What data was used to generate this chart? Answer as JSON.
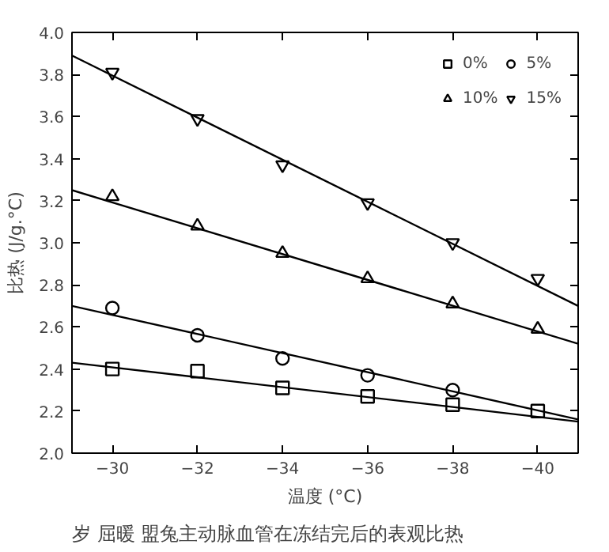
{
  "chart_data": {
    "type": "scatter",
    "xlabel": "温度 (°C)",
    "ylabel": "比热 (J/g.°C)",
    "annotations": [
      "岁 屈暖 盟兔主动脉血管在冻结完后的表观比热"
    ],
    "xlim": [
      -29.05,
      -40.95
    ],
    "ylim": [
      2.0,
      4.0
    ],
    "xticks": [
      -30,
      -32,
      -34,
      -36,
      -38,
      -40
    ],
    "yticks": [
      {
        "value": 2.0,
        "label": "2.0"
      },
      {
        "value": 2.2,
        "label": "2.2"
      },
      {
        "value": 2.4,
        "label": "2.4"
      },
      {
        "value": 2.6,
        "label": "2.6"
      },
      {
        "value": 2.8,
        "label": "2.8"
      },
      {
        "value": 3.0,
        "label": "3.0"
      },
      {
        "value": 3.2,
        "label": "3.2"
      },
      {
        "value": 3.4,
        "label": "3.4"
      },
      {
        "value": 3.6,
        "label": "3.6"
      },
      {
        "value": 3.8,
        "label": "3.8"
      },
      {
        "value": 4.0,
        "label": "4.0"
      }
    ],
    "grid": false,
    "legend": "top right",
    "series": [
      {
        "name": "0%",
        "color": "#000000",
        "marker": "square",
        "x": [
          -30,
          -32,
          -34,
          -36,
          -38,
          -40
        ],
        "values": [
          2.4,
          2.39,
          2.31,
          2.27,
          2.23,
          2.2
        ]
      },
      {
        "name": "5%",
        "color": "#000000",
        "marker": "circle",
        "x": [
          -30,
          -32,
          -34,
          -36,
          -38
        ],
        "values": [
          2.69,
          2.56,
          2.45,
          2.37,
          2.3
        ]
      },
      {
        "name": "10%",
        "color": "#000000",
        "marker": "triangle",
        "x": [
          -30,
          -32,
          -34,
          -36,
          -38,
          -40
        ],
        "values": [
          3.22,
          3.08,
          2.95,
          2.83,
          2.71,
          2.59
        ]
      },
      {
        "name": "15%",
        "color": "#000000",
        "x": [
          -30,
          -32,
          -34,
          -36,
          -38,
          -40
        ],
        "values": [
          3.81,
          3.59,
          3.37,
          3.19,
          3.0,
          2.83
        ]
      },
      {
        "type": "line",
        "color": "#000000",
        "x": [
          -29.05,
          -40.95
        ],
        "values": [
          2.43,
          2.15
        ]
      },
      {
        "type": "line",
        "color": "#000000",
        "x": [
          -29.05,
          -40.95
        ],
        "values": [
          2.7,
          2.16
        ]
      },
      {
        "type": "line",
        "color": "#000000",
        "x": [
          -29.05,
          -40.95
        ],
        "values": [
          3.25,
          2.52
        ]
      },
      {
        "type": "line",
        "color": "#000000",
        "x": [
          -29.05,
          -40.95
        ],
        "values": [
          3.89,
          2.7
        ]
      }
    ]
  }
}
